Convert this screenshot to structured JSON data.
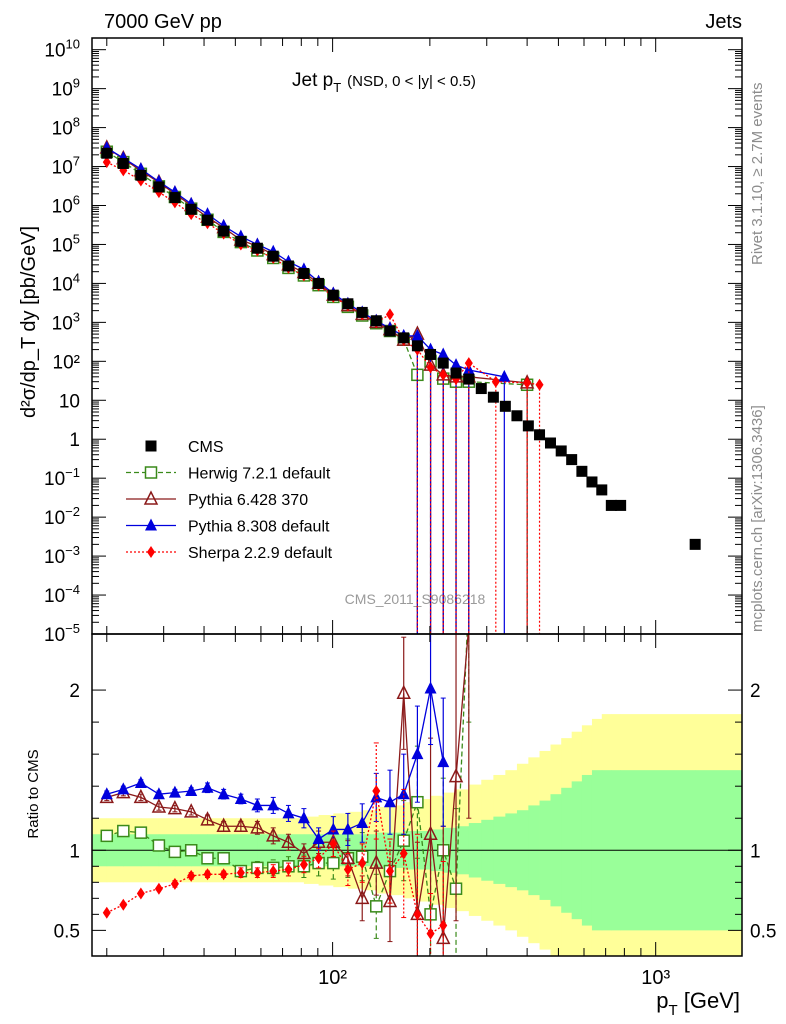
{
  "header": {
    "left": "7000 GeV pp",
    "right": "Jets",
    "side_top": "Rivet 3.1.10, ≥ 2.7M events",
    "side_bottom": "mcplots.cern.ch [arXiv:1306.3436]",
    "watermark": "CMS_2011_S9086218"
  },
  "chart_data": {
    "type": "scatter",
    "title": "Jet p_T (NSD, 0 < |y| < 0.5)",
    "title_main": "Jet p",
    "title_sub": "T",
    "title_tail": "(NSD,   0 < |y| < 0.5)",
    "xlabel": "p_T [GeV]",
    "xlabel_main": "p",
    "xlabel_sub": "T",
    "xlabel_tail": " [GeV]",
    "ylabel": "d²σ/dp_T dy [pb/GeV]",
    "ylabel_ratio": "Ratio to CMS",
    "x_scale": "log",
    "xlim": [
      18,
      1850
    ],
    "ylim": [
      1e-05,
      20000000000.0
    ],
    "y_scale": "log",
    "ratio_ylim": [
      0.34,
      2.35
    ],
    "x_tick_labels": [
      "10²",
      "10³"
    ],
    "ratio_tick_labels": [
      "0.5",
      "1",
      "2"
    ],
    "legend_position": "left",
    "main_series": [
      {
        "name": "CMS",
        "color": "#000000",
        "marker": "square",
        "line": "none",
        "x": [
          20,
          22.5,
          25.5,
          29,
          32.5,
          36.5,
          41,
          46,
          52,
          58.5,
          65.5,
          73,
          81.5,
          90.5,
          100.5,
          111.5,
          123.5,
          136.5,
          150.5,
          166,
          183,
          201,
          220,
          241,
          264,
          288.5,
          314.5,
          342.5,
          372,
          403.5,
          437,
          472.5,
          510,
          549.5,
          591,
          635,
          681,
          729,
          779,
          1325
        ],
        "y": [
          22000000.0,
          12000000.0,
          6000000.0,
          3000000.0,
          1600000.0,
          800000.0,
          420000.0,
          220000.0,
          120000.0,
          80000.0,
          50000.0,
          28000.0,
          18000.0,
          10000.0,
          5000.0,
          3000.0,
          1800.0,
          1100.0,
          600,
          400,
          250,
          150,
          90,
          50,
          35,
          20,
          12,
          7,
          4,
          2.2,
          1.3,
          0.8,
          0.5,
          0.3,
          0.15,
          0.08,
          0.05,
          0.02,
          0.02,
          0.002
        ]
      },
      {
        "name": "Herwig 7.2.1 default",
        "color": "#3a8a1a",
        "marker": "open-square",
        "line": "dashed",
        "x": [
          20,
          22.5,
          25.5,
          29,
          32.5,
          36.5,
          41,
          46,
          52,
          58.5,
          65.5,
          73,
          81.5,
          90.5,
          100.5,
          111.5,
          123.5,
          136.5,
          150.5,
          166,
          183,
          201,
          220,
          241,
          264,
          400
        ],
        "y": [
          24000000.0,
          13000000.0,
          6500000.0,
          3100000.0,
          1650000.0,
          830000.0,
          430000.0,
          210000.0,
          115000.0,
          70000.0,
          45000.0,
          25000.0,
          16000.0,
          9000.0,
          4500.0,
          2500.0,
          1500.0,
          950,
          600,
          360,
          45,
          100,
          36,
          30,
          30,
          25
        ]
      },
      {
        "name": "Pythia 6.428 370",
        "color": "#8b1a1a",
        "marker": "open-triangle",
        "line": "solid",
        "x": [
          20,
          22.5,
          25.5,
          29,
          32.5,
          36.5,
          41,
          46,
          52,
          58.5,
          65.5,
          73,
          81.5,
          90.5,
          100.5,
          111.5,
          123.5,
          136.5,
          150.5,
          166,
          183,
          201,
          220,
          241,
          264,
          400
        ],
        "y": [
          30000000.0,
          16000000.0,
          7800000.0,
          3900000.0,
          2000000.0,
          1000000.0,
          500000.0,
          270000.0,
          130000.0,
          90000.0,
          55000.0,
          30000.0,
          19000.0,
          10000.0,
          5000.0,
          2700.0,
          1600.0,
          1000.0,
          650,
          350,
          500,
          80,
          45,
          40,
          40,
          28
        ]
      },
      {
        "name": "Pythia 8.308 default",
        "color": "#0000dd",
        "marker": "filled-triangle",
        "line": "solid",
        "x": [
          20,
          22.5,
          25.5,
          29,
          32.5,
          36.5,
          41,
          46,
          52,
          58.5,
          65.5,
          73,
          81.5,
          90.5,
          100.5,
          111.5,
          123.5,
          136.5,
          150.5,
          166,
          183,
          201,
          220,
          241,
          264,
          340
        ],
        "y": [
          30000000.0,
          16500000.0,
          8600000.0,
          4100000.0,
          2200000.0,
          1100000.0,
          600000.0,
          300000.0,
          160000.0,
          100000.0,
          65000.0,
          36000.0,
          23000.0,
          11000.0,
          5500.0,
          3000.0,
          1800.0,
          1100.0,
          700,
          450,
          450,
          200,
          150,
          80,
          60,
          40
        ]
      },
      {
        "name": "Sherpa 2.2.9 default",
        "color": "#ff0000",
        "marker": "diamond",
        "line": "dotted",
        "x": [
          20,
          22.5,
          25.5,
          29,
          32.5,
          36.5,
          41,
          46,
          52,
          58.5,
          65.5,
          73,
          81.5,
          90.5,
          100.5,
          111.5,
          123.5,
          136.5,
          150.5,
          166,
          183,
          201,
          220,
          241,
          264,
          320,
          400,
          437
        ],
        "y": [
          13000000.0,
          8000000.0,
          4400000.0,
          2200000.0,
          1200000.0,
          600000.0,
          350000.0,
          190000.0,
          100000.0,
          70000.0,
          45000.0,
          25000.0,
          16000.0,
          9000.0,
          4500.0,
          2700.0,
          1600.0,
          1000.0,
          1600.0,
          350,
          200,
          70,
          45,
          35,
          90,
          30,
          28,
          25
        ]
      }
    ],
    "ratio_series": [
      {
        "name": "Herwig 7.2.1 default",
        "color": "#3a8a1a",
        "marker": "open-square",
        "line": "dashed",
        "x": [
          20,
          22.5,
          25.5,
          29,
          32.5,
          36.5,
          41,
          46,
          52,
          58.5,
          65.5,
          73,
          81.5,
          90.5,
          100.5,
          111.5,
          123.5,
          136.5,
          150.5,
          166,
          183,
          201,
          220,
          241,
          264
        ],
        "y": [
          1.09,
          1.12,
          1.11,
          1.03,
          0.99,
          1.0,
          0.95,
          0.95,
          0.87,
          0.89,
          0.89,
          0.9,
          0.9,
          0.92,
          0.92,
          0.95,
          0.96,
          0.65,
          0.87,
          1.06,
          1.3,
          0.6,
          1.0,
          0.76,
          2.6
        ],
        "err": [
          0.02,
          0.02,
          0.02,
          0.02,
          0.02,
          0.02,
          0.03,
          0.03,
          0.03,
          0.04,
          0.05,
          0.06,
          0.07,
          0.08,
          0.1,
          0.12,
          0.15,
          0.2,
          0.2,
          0.25,
          0.35,
          0.4,
          0.45,
          0.5,
          0.8
        ]
      },
      {
        "name": "Pythia 6.428 370",
        "color": "#8b1a1a",
        "marker": "open-triangle",
        "line": "solid",
        "x": [
          20,
          22.5,
          25.5,
          29,
          32.5,
          36.5,
          41,
          46,
          52,
          58.5,
          65.5,
          73,
          81.5,
          90.5,
          100.5,
          111.5,
          123.5,
          136.5,
          150.5,
          166,
          183,
          201,
          220,
          241,
          264
        ],
        "y": [
          1.33,
          1.36,
          1.33,
          1.27,
          1.26,
          1.24,
          1.19,
          1.15,
          1.15,
          1.14,
          1.09,
          1.05,
          0.98,
          1.05,
          1.05,
          0.95,
          0.7,
          0.92,
          0.68,
          1.98,
          0.6,
          1.1,
          0.45,
          1.46,
          2.4
        ],
        "err": [
          0.02,
          0.02,
          0.02,
          0.02,
          0.02,
          0.02,
          0.03,
          0.03,
          0.03,
          0.04,
          0.05,
          0.05,
          0.06,
          0.07,
          0.09,
          0.11,
          0.14,
          0.2,
          0.25,
          0.35,
          0.45,
          0.6,
          0.7,
          0.9,
          1.2
        ]
      },
      {
        "name": "Pythia 8.308 default",
        "color": "#0000dd",
        "marker": "filled-triangle",
        "line": "solid",
        "x": [
          20,
          22.5,
          25.5,
          29,
          32.5,
          36.5,
          41,
          46,
          52,
          58.5,
          65.5,
          73,
          81.5,
          90.5,
          100.5,
          111.5,
          123.5,
          136.5,
          150.5,
          166,
          183,
          201,
          220
        ],
        "y": [
          1.35,
          1.38,
          1.42,
          1.35,
          1.36,
          1.37,
          1.39,
          1.35,
          1.32,
          1.28,
          1.28,
          1.23,
          1.2,
          1.07,
          1.13,
          1.13,
          1.17,
          1.33,
          1.3,
          1.35,
          1.6,
          2.01,
          1.55
        ],
        "err": [
          0.02,
          0.02,
          0.02,
          0.02,
          0.02,
          0.02,
          0.03,
          0.03,
          0.03,
          0.04,
          0.05,
          0.05,
          0.06,
          0.07,
          0.08,
          0.1,
          0.12,
          0.15,
          0.2,
          0.25,
          0.3,
          0.35,
          0.4
        ]
      },
      {
        "name": "Sherpa 2.2.9 default",
        "color": "#ff0000",
        "marker": "diamond",
        "line": "dotted",
        "x": [
          20,
          22.5,
          25.5,
          29,
          32.5,
          36.5,
          41,
          46,
          52,
          58.5,
          65.5,
          73,
          81.5,
          90.5,
          100.5,
          111.5,
          123.5,
          136.5,
          150.5,
          166,
          183,
          201,
          220
        ],
        "y": [
          0.61,
          0.66,
          0.73,
          0.76,
          0.79,
          0.84,
          0.85,
          0.85,
          0.86,
          0.86,
          0.87,
          0.88,
          0.91,
          0.95,
          1.04,
          0.88,
          0.92,
          1.37,
          0.87,
          0.98,
          0.6,
          0.48,
          0.53
        ],
        "err": [
          0.01,
          0.01,
          0.01,
          0.01,
          0.02,
          0.02,
          0.02,
          0.02,
          0.03,
          0.03,
          0.04,
          0.04,
          0.05,
          0.06,
          0.08,
          0.1,
          0.12,
          0.3,
          0.2,
          0.4,
          0.5,
          0.25,
          0.4
        ]
      }
    ],
    "uncertainty_bands": {
      "edges": [
        18,
        20,
        22.5,
        25.5,
        29,
        32.5,
        36.5,
        41,
        46,
        52,
        58.5,
        65.5,
        73,
        81.5,
        90.5,
        100.5,
        111.5,
        123.5,
        136.5,
        150.5,
        166,
        183,
        201,
        220,
        241,
        264,
        288.5,
        314.5,
        342.5,
        372,
        403.5,
        437,
        472.5,
        510,
        549.5,
        591,
        635,
        681,
        729,
        779,
        1325,
        1850
      ],
      "inner": [
        0.1,
        0.1,
        0.1,
        0.1,
        0.1,
        0.1,
        0.1,
        0.1,
        0.1,
        0.1,
        0.1,
        0.1,
        0.1,
        0.1,
        0.1,
        0.1,
        0.1,
        0.1,
        0.11,
        0.11,
        0.12,
        0.12,
        0.13,
        0.14,
        0.15,
        0.17,
        0.19,
        0.21,
        0.23,
        0.25,
        0.28,
        0.31,
        0.35,
        0.39,
        0.43,
        0.47,
        0.5,
        0.5,
        0.5,
        0.5,
        0.5
      ],
      "outer": [
        0.2,
        0.2,
        0.2,
        0.2,
        0.2,
        0.2,
        0.2,
        0.2,
        0.2,
        0.2,
        0.2,
        0.2,
        0.2,
        0.21,
        0.22,
        0.23,
        0.24,
        0.25,
        0.27,
        0.28,
        0.3,
        0.32,
        0.34,
        0.36,
        0.38,
        0.41,
        0.44,
        0.47,
        0.5,
        0.54,
        0.58,
        0.62,
        0.66,
        0.7,
        0.74,
        0.78,
        0.82,
        0.85,
        0.85,
        0.85,
        0.85
      ]
    }
  }
}
